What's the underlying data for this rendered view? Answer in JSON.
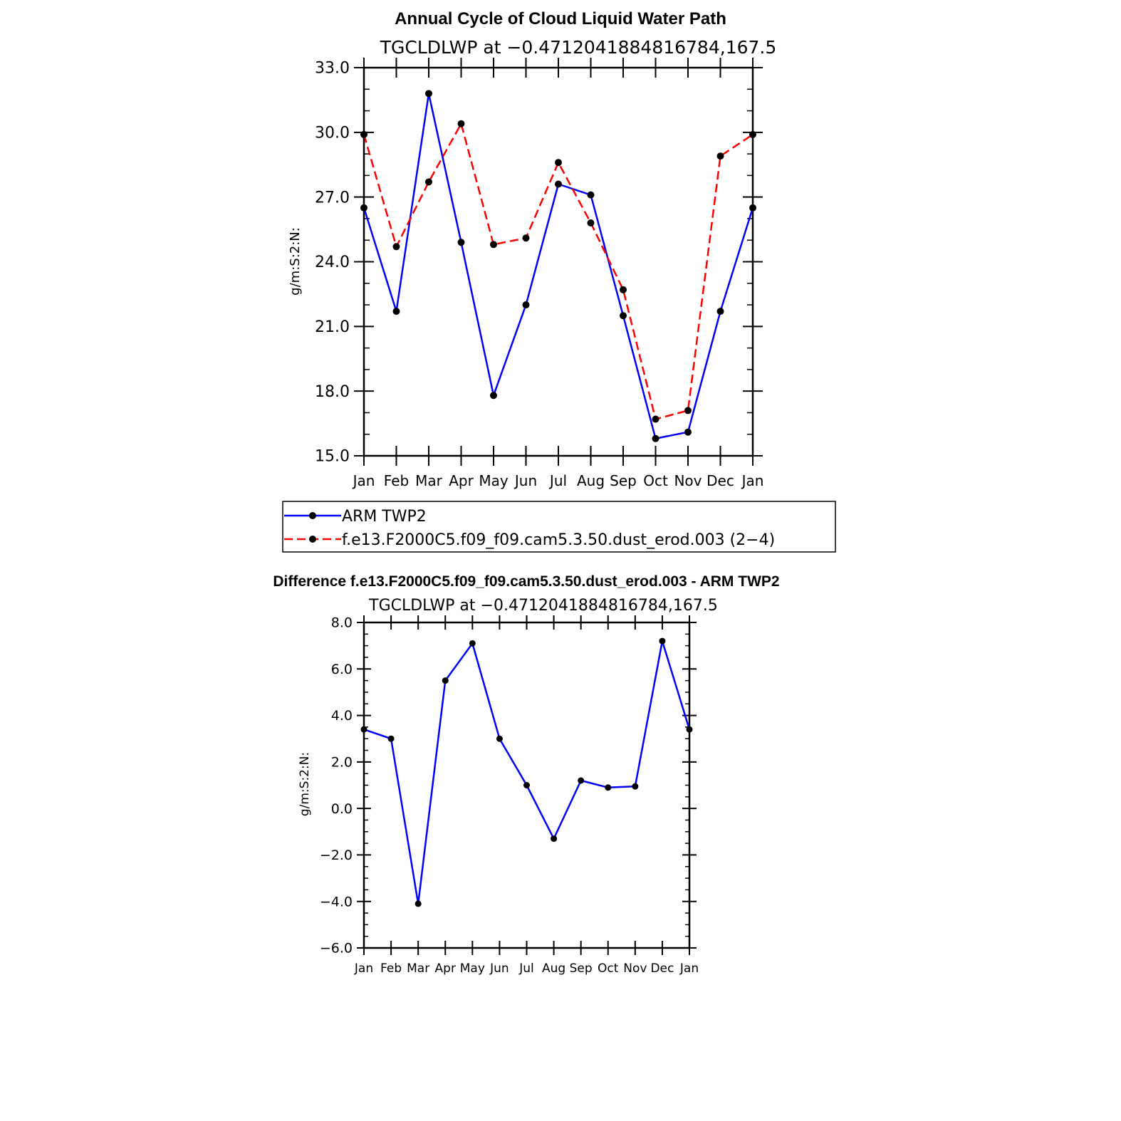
{
  "chart_data": [
    {
      "type": "line",
      "title": "Annual Cycle of Cloud Liquid Water Path",
      "subtitle": "TGCLDLWP at −0.4712041884816784,167.5",
      "ylabel": "g/m:S:2:N:",
      "xlabel": "",
      "categories": [
        "Jan",
        "Feb",
        "Mar",
        "Apr",
        "May",
        "Jun",
        "Jul",
        "Aug",
        "Sep",
        "Oct",
        "Nov",
        "Dec",
        "Jan"
      ],
      "ylim": [
        15.0,
        33.0
      ],
      "yticks": [
        "15.0",
        "18.0",
        "21.0",
        "24.0",
        "27.0",
        "30.0",
        "33.0"
      ],
      "series": [
        {
          "name": "ARM  TWP2",
          "color": "#0000ff",
          "dash": "solid",
          "values": [
            26.5,
            21.7,
            31.8,
            24.9,
            17.8,
            22.0,
            27.6,
            27.1,
            21.5,
            15.8,
            16.1,
            21.7,
            26.5
          ]
        },
        {
          "name": "f.e13.F2000C5.f09_f09.cam5.3.50.dust_erod.003 (2−4)",
          "color": "#ff0000",
          "dash": "dashed",
          "values": [
            29.9,
            24.7,
            27.7,
            30.4,
            24.8,
            25.1,
            28.6,
            25.8,
            22.7,
            16.7,
            17.1,
            28.9,
            29.9
          ]
        }
      ],
      "legend": "below"
    },
    {
      "type": "line",
      "title": "Difference f.e13.F2000C5.f09_f09.cam5.3.50.dust_erod.003 - ARM TWP2",
      "subtitle": "TGCLDLWP at −0.4712041884816784,167.5",
      "ylabel": "g/m:S:2:N:",
      "xlabel": "",
      "categories": [
        "Jan",
        "Feb",
        "Mar",
        "Apr",
        "May",
        "Jun",
        "Jul",
        "Aug",
        "Sep",
        "Oct",
        "Nov",
        "Dec",
        "Jan"
      ],
      "ylim": [
        -6.0,
        8.0
      ],
      "yticks": [
        "−6.0",
        "−4.0",
        "−2.0",
        "0.0",
        "2.0",
        "4.0",
        "6.0",
        "8.0"
      ],
      "series": [
        {
          "color": "#0000ff",
          "dash": "solid",
          "values": [
            3.4,
            3.0,
            -4.1,
            5.5,
            7.1,
            3.0,
            1.0,
            -1.3,
            1.2,
            0.9,
            0.95,
            7.2,
            3.4
          ]
        }
      ]
    }
  ]
}
